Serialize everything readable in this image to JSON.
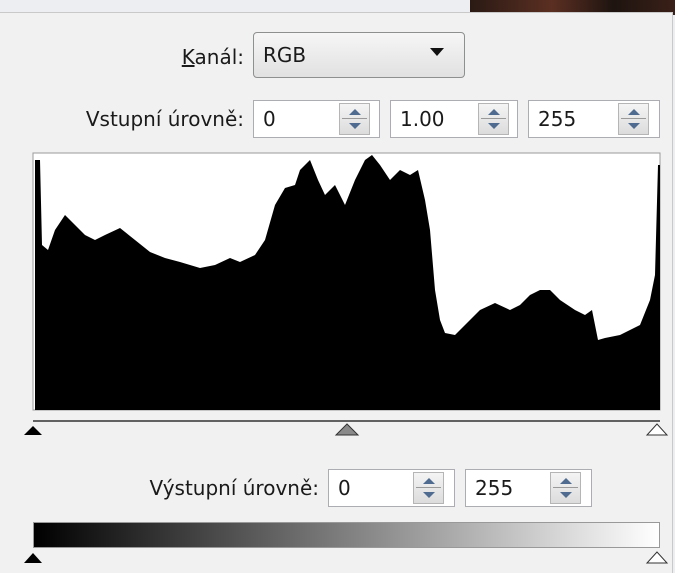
{
  "channel": {
    "label": "Kanál:",
    "value": "RGB"
  },
  "input_levels": {
    "label": "Vstupní úrovně:",
    "fields": [
      "0",
      "1.00",
      "255"
    ]
  },
  "output_levels": {
    "label": "Výstupní úrovně:",
    "fields": [
      "0",
      "255"
    ]
  }
}
